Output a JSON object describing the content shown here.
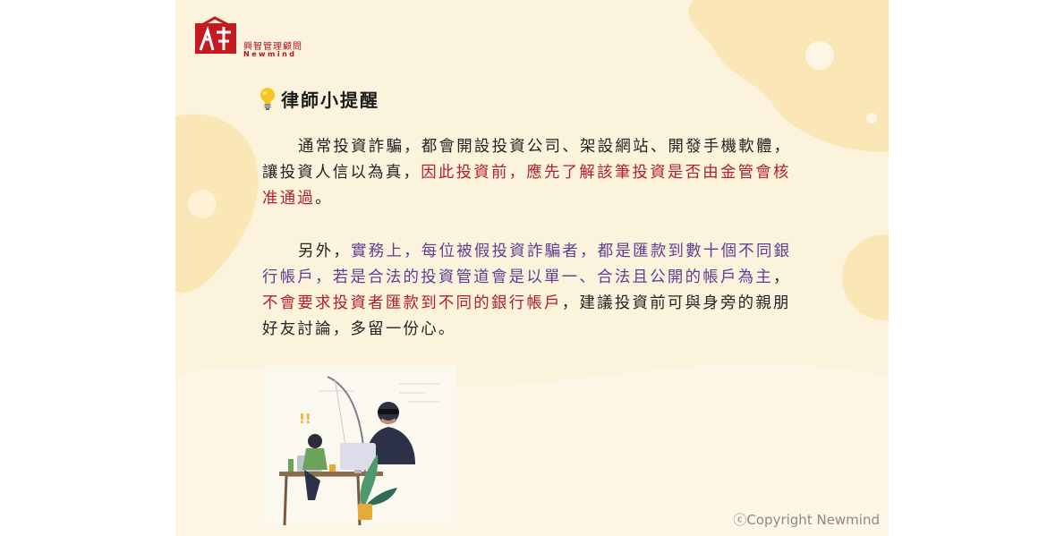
{
  "logo": {
    "name_cn": "興智管理顧問",
    "name_en": "Newmind"
  },
  "heading": {
    "icon": "lightbulb-icon",
    "title": "律師小提醒"
  },
  "paragraph1": {
    "part1": "通常投資詐騙，都會開設投資公司、架設網站、開發手機軟體，讓投資人信以為真，",
    "part2": "因此投資前，應先了解該筆投資是否由金管會核准通過",
    "part3": "。"
  },
  "paragraph2": {
    "part1": "另外，",
    "part2": "實務上，每位被假投資詐騙者，都是匯款到數十個不同銀行帳戶，若是合法的投資管道會是以單一、合法且公開的帳戶為主",
    "part3": "，",
    "part4": "不會要求投資者匯款到不同的銀行帳戶",
    "part5": "，建議投資前可與身旁的親朋好友討論，多留一份心。"
  },
  "colors": {
    "background": "#fcf3dc",
    "blob": "#fbe6b6",
    "red_text": "#b21f2a",
    "purple_text": "#5b3f93"
  },
  "illustration": {
    "icon": "scammer-fishing-woman-illustration"
  },
  "footer": {
    "copyright": "ⓒCopyright Newmind"
  }
}
